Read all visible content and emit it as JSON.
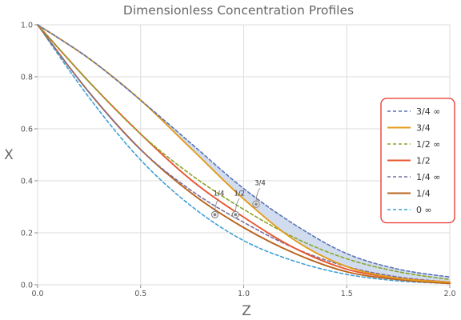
{
  "chart_data": {
    "type": "line",
    "title": "Dimensionless Concentration Profiles",
    "xlabel": "Z",
    "ylabel": "X",
    "xlim": [
      0,
      2
    ],
    "ylim": [
      0,
      1
    ],
    "grid": true,
    "legend_position": "right",
    "x_ticks": [
      "0.0",
      "0.5",
      "1.0",
      "1.5",
      "2.0"
    ],
    "y_ticks": [
      "0.0",
      "0.2",
      "0.4",
      "0.6",
      "0.8",
      "1.0"
    ],
    "x": [
      0,
      0.25,
      0.5,
      0.75,
      1.0,
      1.25,
      1.5,
      1.75,
      2.0
    ],
    "series": [
      {
        "name": "3/4 ∞",
        "style": "dashed",
        "color": "#5b74b6",
        "values": [
          1.0,
          0.87,
          0.71,
          0.54,
          0.37,
          0.23,
          0.12,
          0.06,
          0.03
        ]
      },
      {
        "name": "3/4",
        "style": "solid",
        "color": "#e29d1b",
        "values": [
          1.0,
          0.87,
          0.71,
          0.52,
          0.33,
          0.17,
          0.07,
          0.025,
          0.01
        ]
      },
      {
        "name": "1/2 ∞",
        "style": "dashed",
        "color": "#8aa62c",
        "values": [
          1.0,
          0.78,
          0.58,
          0.42,
          0.29,
          0.18,
          0.1,
          0.05,
          0.02
        ]
      },
      {
        "name": "1/2",
        "style": "solid",
        "color": "#e8552f",
        "values": [
          1.0,
          0.78,
          0.58,
          0.4,
          0.26,
          0.14,
          0.06,
          0.025,
          0.01
        ]
      },
      {
        "name": "1/4 ∞",
        "style": "dashed",
        "color": "#7a6e9e",
        "values": [
          1.0,
          0.74,
          0.52,
          0.36,
          0.24,
          0.14,
          0.07,
          0.03,
          0.01
        ]
      },
      {
        "name": "1/4",
        "style": "solid",
        "color": "#b9641d",
        "values": [
          1.0,
          0.74,
          0.52,
          0.35,
          0.22,
          0.12,
          0.05,
          0.02,
          0.005
        ]
      },
      {
        "name": "0 ∞",
        "style": "dashed",
        "color": "#3e9fd6",
        "values": [
          1.0,
          0.72,
          0.48,
          0.3,
          0.17,
          0.09,
          0.04,
          0.015,
          0.005
        ]
      }
    ],
    "shaded_band": {
      "between": [
        "3/4 ∞",
        "3/4"
      ],
      "color": "#c9d6ec"
    },
    "annotations": [
      {
        "text": "1/4",
        "x": 0.86,
        "y": 0.27
      },
      {
        "text": "1/2",
        "x": 0.96,
        "y": 0.27
      },
      {
        "text": "3/4",
        "x": 1.06,
        "y": 0.31
      }
    ]
  }
}
